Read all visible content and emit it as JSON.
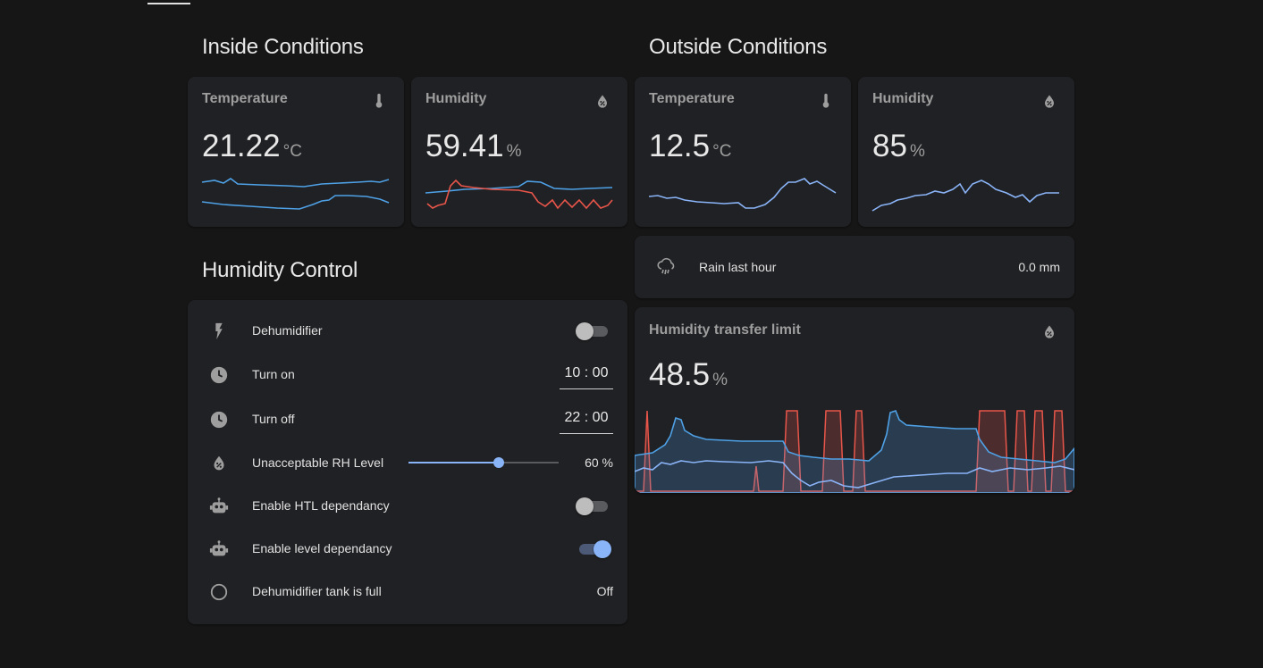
{
  "colors": {
    "background": "#161616",
    "card": "#202124",
    "accent": "#8ab4f8",
    "line_blue": "#4ea1e6",
    "line_red": "#e8554a"
  },
  "sections": {
    "inside": "Inside Conditions",
    "outside": "Outside Conditions",
    "control": "Humidity Control"
  },
  "inside": {
    "temperature": {
      "title": "Temperature",
      "value": "21.22",
      "unit": "°C",
      "icon": "thermometer-icon"
    },
    "humidity": {
      "title": "Humidity",
      "value": "59.41",
      "unit": "%",
      "icon": "water-percent-icon"
    }
  },
  "outside": {
    "temperature": {
      "title": "Temperature",
      "value": "12.5",
      "unit": "°C",
      "icon": "thermometer-icon"
    },
    "humidity": {
      "title": "Humidity",
      "value": "85",
      "unit": "%",
      "icon": "water-percent-icon"
    }
  },
  "rain": {
    "label": "Rain last hour",
    "value": "0.0 mm",
    "icon": "weather-pouring-icon"
  },
  "htl": {
    "title": "Humidity transfer limit",
    "value": "48.5",
    "unit": "%",
    "icon": "water-percent-icon"
  },
  "control": {
    "dehumidifier": {
      "label": "Dehumidifier",
      "state": "off",
      "icon": "flash-icon"
    },
    "turn_on": {
      "label": "Turn on",
      "time": "10 : 00",
      "icon": "clock-icon"
    },
    "turn_off": {
      "label": "Turn off",
      "time": "22 : 00",
      "icon": "clock-icon"
    },
    "rh_level": {
      "label": "Unacceptable RH Level",
      "value": 60,
      "display": "60 %",
      "min": 0,
      "max": 100,
      "icon": "water-percent-icon"
    },
    "htl_dependancy": {
      "label": "Enable HTL dependancy",
      "state": "off",
      "icon": "robot-icon"
    },
    "level_dependancy": {
      "label": "Enable level dependancy",
      "state": "on",
      "icon": "robot-icon"
    },
    "tank_full": {
      "label": "Dehumidifier tank is full",
      "value": "Off",
      "icon": "circle-outline-icon"
    }
  }
}
